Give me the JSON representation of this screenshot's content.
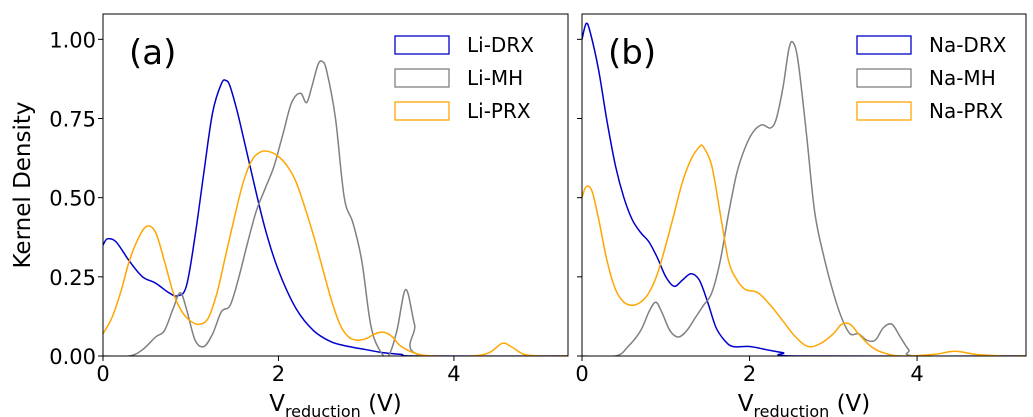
{
  "chart_data": [
    {
      "type": "line",
      "panel_label": "(a)",
      "xlabel": "V",
      "xlabel_sub": "reduction",
      "xlabel_unit": " (V)",
      "ylabel": "Kernel Density",
      "xlim": [
        0,
        5.3
      ],
      "ylim": [
        0,
        1.08
      ],
      "xticks": [
        0,
        2,
        4
      ],
      "xtick_labels": [
        "0",
        "2",
        "4"
      ],
      "yticks": [
        0,
        0.25,
        0.5,
        0.75,
        1.0
      ],
      "ytick_labels": [
        "0.00",
        "0.25",
        "0.50",
        "0.75",
        "1.00"
      ],
      "grid": false,
      "legend_position": "top-right",
      "series": [
        {
          "name": "Li-DRX",
          "color": "#0000cc",
          "points": [
            [
              0,
              0.35
            ],
            [
              0.05,
              0.37
            ],
            [
              0.15,
              0.36
            ],
            [
              0.3,
              0.3
            ],
            [
              0.45,
              0.25
            ],
            [
              0.6,
              0.23
            ],
            [
              0.75,
              0.2
            ],
            [
              0.85,
              0.19
            ],
            [
              0.95,
              0.22
            ],
            [
              1.05,
              0.38
            ],
            [
              1.15,
              0.58
            ],
            [
              1.25,
              0.77
            ],
            [
              1.35,
              0.86
            ],
            [
              1.4,
              0.87
            ],
            [
              1.45,
              0.85
            ],
            [
              1.55,
              0.75
            ],
            [
              1.7,
              0.57
            ],
            [
              1.85,
              0.4
            ],
            [
              2.0,
              0.27
            ],
            [
              2.2,
              0.15
            ],
            [
              2.4,
              0.08
            ],
            [
              2.6,
              0.045
            ],
            [
              2.8,
              0.03
            ],
            [
              3.0,
              0.02
            ],
            [
              3.2,
              0.01
            ],
            [
              3.4,
              0.005
            ],
            [
              3.6,
              0.0
            ],
            [
              5.3,
              0.0
            ]
          ]
        },
        {
          "name": "Li-MH",
          "color": "#808080",
          "points": [
            [
              0,
              0
            ],
            [
              0.3,
              0.0
            ],
            [
              0.45,
              0.02
            ],
            [
              0.6,
              0.06
            ],
            [
              0.7,
              0.08
            ],
            [
              0.8,
              0.15
            ],
            [
              0.88,
              0.2
            ],
            [
              0.95,
              0.15
            ],
            [
              1.05,
              0.05
            ],
            [
              1.15,
              0.03
            ],
            [
              1.25,
              0.07
            ],
            [
              1.35,
              0.14
            ],
            [
              1.45,
              0.16
            ],
            [
              1.55,
              0.25
            ],
            [
              1.65,
              0.36
            ],
            [
              1.75,
              0.46
            ],
            [
              1.85,
              0.53
            ],
            [
              1.95,
              0.6
            ],
            [
              2.05,
              0.7
            ],
            [
              2.15,
              0.8
            ],
            [
              2.25,
              0.83
            ],
            [
              2.32,
              0.8
            ],
            [
              2.38,
              0.85
            ],
            [
              2.45,
              0.92
            ],
            [
              2.5,
              0.93
            ],
            [
              2.55,
              0.9
            ],
            [
              2.65,
              0.75
            ],
            [
              2.75,
              0.5
            ],
            [
              2.85,
              0.42
            ],
            [
              2.95,
              0.3
            ],
            [
              3.05,
              0.1
            ],
            [
              3.15,
              0.02
            ],
            [
              3.25,
              0.0
            ],
            [
              3.35,
              0.08
            ],
            [
              3.45,
              0.21
            ],
            [
              3.55,
              0.1
            ],
            [
              3.65,
              0.0
            ],
            [
              5.3,
              0.0
            ]
          ]
        },
        {
          "name": "Li-PRX",
          "color": "#ffa500",
          "points": [
            [
              0,
              0.07
            ],
            [
              0.1,
              0.12
            ],
            [
              0.2,
              0.2
            ],
            [
              0.3,
              0.3
            ],
            [
              0.4,
              0.37
            ],
            [
              0.5,
              0.41
            ],
            [
              0.6,
              0.39
            ],
            [
              0.7,
              0.3
            ],
            [
              0.8,
              0.2
            ],
            [
              0.9,
              0.14
            ],
            [
              1.0,
              0.11
            ],
            [
              1.1,
              0.1
            ],
            [
              1.2,
              0.12
            ],
            [
              1.3,
              0.2
            ],
            [
              1.4,
              0.32
            ],
            [
              1.5,
              0.44
            ],
            [
              1.6,
              0.55
            ],
            [
              1.7,
              0.62
            ],
            [
              1.8,
              0.645
            ],
            [
              1.9,
              0.645
            ],
            [
              2.0,
              0.63
            ],
            [
              2.1,
              0.6
            ],
            [
              2.2,
              0.55
            ],
            [
              2.3,
              0.47
            ],
            [
              2.4,
              0.38
            ],
            [
              2.5,
              0.28
            ],
            [
              2.6,
              0.18
            ],
            [
              2.7,
              0.1
            ],
            [
              2.8,
              0.06
            ],
            [
              2.9,
              0.05
            ],
            [
              3.0,
              0.055
            ],
            [
              3.1,
              0.07
            ],
            [
              3.2,
              0.075
            ],
            [
              3.3,
              0.06
            ],
            [
              3.4,
              0.03
            ],
            [
              3.6,
              0.005
            ],
            [
              3.8,
              0.0
            ],
            [
              4.2,
              0.0
            ],
            [
              4.4,
              0.01
            ],
            [
              4.55,
              0.04
            ],
            [
              4.65,
              0.03
            ],
            [
              4.8,
              0.005
            ],
            [
              5.0,
              0.0
            ],
            [
              5.3,
              0.0
            ]
          ]
        }
      ]
    },
    {
      "type": "line",
      "panel_label": "(b)",
      "xlabel": "V",
      "xlabel_sub": "reduction",
      "xlabel_unit": " (V)",
      "ylabel": "",
      "xlim": [
        0,
        5.3
      ],
      "ylim": [
        0,
        1.08
      ],
      "xticks": [
        0,
        2,
        4
      ],
      "xtick_labels": [
        "0",
        "2",
        "4"
      ],
      "yticks": [
        0,
        0.25,
        0.5,
        0.75,
        1.0
      ],
      "ytick_labels": [],
      "grid": false,
      "legend_position": "top-right",
      "series": [
        {
          "name": "Na-DRX",
          "color": "#0000cc",
          "points": [
            [
              0,
              1.0
            ],
            [
              0.05,
              1.05
            ],
            [
              0.1,
              1.02
            ],
            [
              0.2,
              0.9
            ],
            [
              0.3,
              0.74
            ],
            [
              0.4,
              0.6
            ],
            [
              0.5,
              0.5
            ],
            [
              0.6,
              0.43
            ],
            [
              0.7,
              0.39
            ],
            [
              0.8,
              0.36
            ],
            [
              0.9,
              0.31
            ],
            [
              1.0,
              0.25
            ],
            [
              1.1,
              0.22
            ],
            [
              1.2,
              0.24
            ],
            [
              1.3,
              0.26
            ],
            [
              1.4,
              0.24
            ],
            [
              1.5,
              0.17
            ],
            [
              1.6,
              0.09
            ],
            [
              1.7,
              0.05
            ],
            [
              1.8,
              0.03
            ],
            [
              2.0,
              0.03
            ],
            [
              2.2,
              0.02
            ],
            [
              2.4,
              0.01
            ],
            [
              2.6,
              0.0
            ],
            [
              5.3,
              0.0
            ]
          ]
        },
        {
          "name": "Na-MH",
          "color": "#808080",
          "points": [
            [
              0,
              0
            ],
            [
              0.4,
              0.0
            ],
            [
              0.55,
              0.03
            ],
            [
              0.7,
              0.08
            ],
            [
              0.8,
              0.14
            ],
            [
              0.88,
              0.17
            ],
            [
              0.95,
              0.14
            ],
            [
              1.05,
              0.08
            ],
            [
              1.15,
              0.06
            ],
            [
              1.25,
              0.08
            ],
            [
              1.35,
              0.12
            ],
            [
              1.45,
              0.16
            ],
            [
              1.55,
              0.2
            ],
            [
              1.65,
              0.3
            ],
            [
              1.75,
              0.45
            ],
            [
              1.85,
              0.58
            ],
            [
              1.95,
              0.66
            ],
            [
              2.05,
              0.71
            ],
            [
              2.15,
              0.73
            ],
            [
              2.25,
              0.72
            ],
            [
              2.32,
              0.75
            ],
            [
              2.4,
              0.85
            ],
            [
              2.47,
              0.97
            ],
            [
              2.52,
              0.99
            ],
            [
              2.58,
              0.93
            ],
            [
              2.68,
              0.7
            ],
            [
              2.78,
              0.45
            ],
            [
              2.9,
              0.3
            ],
            [
              3.0,
              0.2
            ],
            [
              3.1,
              0.12
            ],
            [
              3.2,
              0.07
            ],
            [
              3.3,
              0.07
            ],
            [
              3.4,
              0.05
            ],
            [
              3.5,
              0.05
            ],
            [
              3.6,
              0.09
            ],
            [
              3.7,
              0.1
            ],
            [
              3.8,
              0.06
            ],
            [
              3.9,
              0.02
            ],
            [
              4.0,
              0.0
            ],
            [
              5.3,
              0.0
            ]
          ]
        },
        {
          "name": "Na-PRX",
          "color": "#ffa500",
          "points": [
            [
              0,
              0.5
            ],
            [
              0.05,
              0.535
            ],
            [
              0.12,
              0.52
            ],
            [
              0.2,
              0.43
            ],
            [
              0.3,
              0.3
            ],
            [
              0.4,
              0.21
            ],
            [
              0.5,
              0.17
            ],
            [
              0.6,
              0.16
            ],
            [
              0.7,
              0.17
            ],
            [
              0.8,
              0.2
            ],
            [
              0.9,
              0.26
            ],
            [
              1.0,
              0.35
            ],
            [
              1.1,
              0.45
            ],
            [
              1.2,
              0.55
            ],
            [
              1.3,
              0.62
            ],
            [
              1.4,
              0.66
            ],
            [
              1.45,
              0.66
            ],
            [
              1.55,
              0.6
            ],
            [
              1.65,
              0.45
            ],
            [
              1.75,
              0.3
            ],
            [
              1.85,
              0.24
            ],
            [
              1.95,
              0.21
            ],
            [
              2.1,
              0.2
            ],
            [
              2.25,
              0.16
            ],
            [
              2.4,
              0.11
            ],
            [
              2.55,
              0.06
            ],
            [
              2.7,
              0.03
            ],
            [
              2.85,
              0.04
            ],
            [
              3.0,
              0.07
            ],
            [
              3.1,
              0.1
            ],
            [
              3.2,
              0.1
            ],
            [
              3.3,
              0.07
            ],
            [
              3.45,
              0.03
            ],
            [
              3.6,
              0.01
            ],
            [
              3.8,
              0.0
            ],
            [
              4.2,
              0.005
            ],
            [
              4.45,
              0.015
            ],
            [
              4.7,
              0.005
            ],
            [
              5.0,
              0.0
            ],
            [
              5.3,
              0.0
            ]
          ]
        }
      ]
    }
  ]
}
